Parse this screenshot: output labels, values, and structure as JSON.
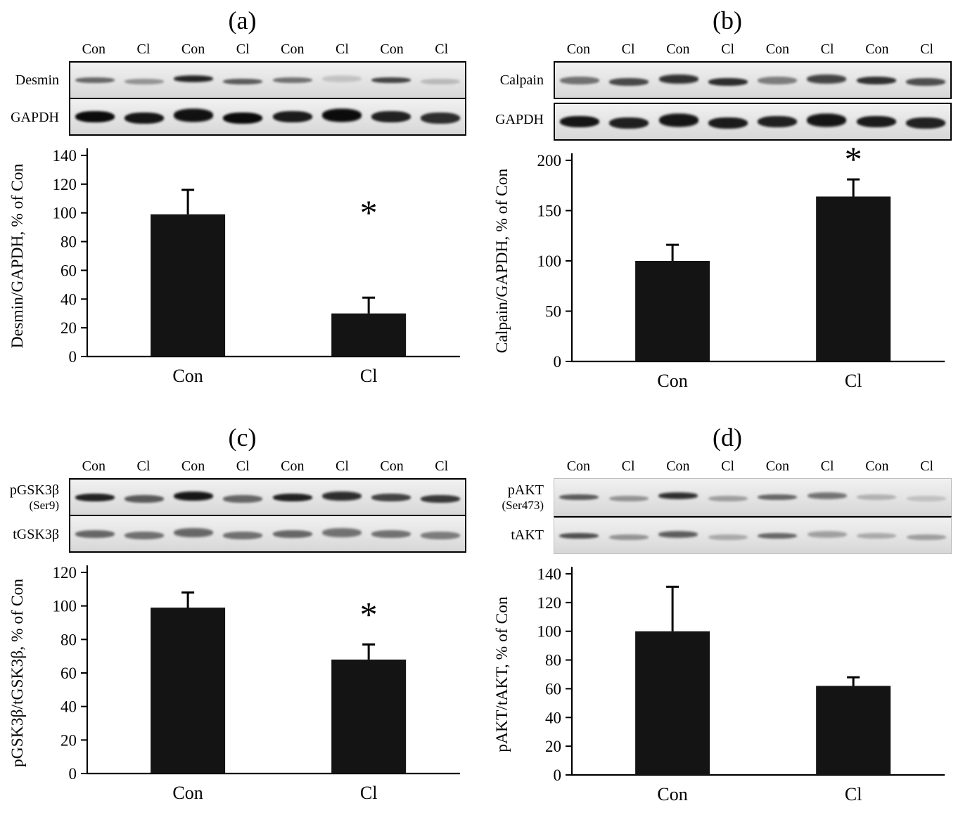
{
  "figure": {
    "background": "#ffffff",
    "bar_color": "#141414",
    "significance_marker": "*"
  },
  "panels": [
    {
      "id": "a",
      "title": "(a)",
      "lane_labels": [
        "Con",
        "Cl",
        "Con",
        "Cl",
        "Con",
        "Cl",
        "Con",
        "Cl"
      ],
      "blot": {
        "frame": "dark",
        "row_gap": false,
        "rows": [
          {
            "label": "Desmin",
            "sublabel": "",
            "band": "thin",
            "intensities": [
              0.55,
              0.35,
              0.85,
              0.6,
              0.5,
              0.15,
              0.7,
              0.18
            ]
          },
          {
            "label": "GAPDH",
            "sublabel": "",
            "band": "thick",
            "intensities": [
              0.95,
              0.9,
              0.92,
              0.95,
              0.88,
              0.95,
              0.85,
              0.8
            ]
          }
        ]
      }
    },
    {
      "id": "b",
      "title": "(b)",
      "lane_labels": [
        "Con",
        "Cl",
        "Con",
        "Cl",
        "Con",
        "Cl",
        "Con",
        "Cl"
      ],
      "blot": {
        "frame": "dark",
        "row_gap": true,
        "rows": [
          {
            "label": "Calpain",
            "sublabel": "",
            "band": "med",
            "intensities": [
              0.5,
              0.68,
              0.78,
              0.8,
              0.45,
              0.7,
              0.78,
              0.65
            ]
          },
          {
            "label": "GAPDH",
            "sublabel": "",
            "band": "thick",
            "intensities": [
              0.9,
              0.86,
              0.9,
              0.88,
              0.85,
              0.9,
              0.88,
              0.85
            ]
          }
        ]
      }
    },
    {
      "id": "c",
      "title": "(c)",
      "lane_labels": [
        "Con",
        "Cl",
        "Con",
        "Cl",
        "Con",
        "Cl",
        "Con",
        "Cl"
      ],
      "blot": {
        "frame": "dark",
        "row_gap": false,
        "rows": [
          {
            "label": "pGSK3β",
            "sublabel": "(Ser9)",
            "band": "med",
            "intensities": [
              0.85,
              0.6,
              0.9,
              0.55,
              0.85,
              0.8,
              0.7,
              0.75
            ]
          },
          {
            "label": "tGSK3β",
            "sublabel": "",
            "band": "med",
            "intensities": [
              0.55,
              0.5,
              0.55,
              0.5,
              0.55,
              0.5,
              0.5,
              0.45
            ]
          }
        ]
      }
    },
    {
      "id": "d",
      "title": "(d)",
      "lane_labels": [
        "Con",
        "Cl",
        "Con",
        "Cl",
        "Con",
        "Cl",
        "Con",
        "Cl"
      ],
      "blot": {
        "frame": "light",
        "row_gap": false,
        "rows": [
          {
            "label": "pAKT",
            "sublabel": "(Ser473)",
            "band": "thin",
            "intensities": [
              0.6,
              0.35,
              0.8,
              0.3,
              0.55,
              0.5,
              0.22,
              0.15
            ]
          },
          {
            "label": "tAKT",
            "sublabel": "",
            "band": "thin",
            "intensities": [
              0.65,
              0.35,
              0.6,
              0.25,
              0.55,
              0.3,
              0.25,
              0.3
            ]
          }
        ]
      }
    }
  ],
  "chart_data": [
    {
      "type": "bar",
      "panel": "a",
      "categories": [
        "Con",
        "Cl"
      ],
      "values": [
        99,
        30
      ],
      "errors": [
        17,
        11
      ],
      "significance": [
        false,
        true
      ],
      "sig_y_values": [
        null,
        92
      ],
      "title": "",
      "xlabel": "",
      "ylabel": "Desmin/GAPDH, % of Con",
      "ylim": [
        0,
        140
      ],
      "yticks": [
        0,
        20,
        40,
        60,
        80,
        100,
        120,
        140
      ]
    },
    {
      "type": "bar",
      "panel": "b",
      "categories": [
        "Con",
        "Cl"
      ],
      "values": [
        100,
        164
      ],
      "errors": [
        16,
        17
      ],
      "significance": [
        false,
        true
      ],
      "title": "",
      "xlabel": "",
      "ylabel": "Calpain/GAPDH, % of Con",
      "ylim": [
        0,
        200
      ],
      "yticks": [
        0,
        50,
        100,
        150,
        200
      ]
    },
    {
      "type": "bar",
      "panel": "c",
      "categories": [
        "Con",
        "Cl"
      ],
      "values": [
        99,
        68
      ],
      "errors": [
        9,
        9
      ],
      "significance": [
        false,
        true
      ],
      "sig_y_values": [
        null,
        88
      ],
      "title": "",
      "xlabel": "",
      "ylabel": "pGSK3β/tGSK3β, % of Con",
      "ylim": [
        0,
        120
      ],
      "yticks": [
        0,
        20,
        40,
        60,
        80,
        100,
        120
      ]
    },
    {
      "type": "bar",
      "panel": "d",
      "categories": [
        "Con",
        "Cl"
      ],
      "values": [
        100,
        62
      ],
      "errors": [
        31,
        6
      ],
      "significance": [
        false,
        false
      ],
      "title": "",
      "xlabel": "",
      "ylabel": "pAKT/tAKT, % of Con",
      "ylim": [
        0,
        140
      ],
      "yticks": [
        0,
        20,
        40,
        60,
        80,
        100,
        120,
        140
      ]
    }
  ]
}
